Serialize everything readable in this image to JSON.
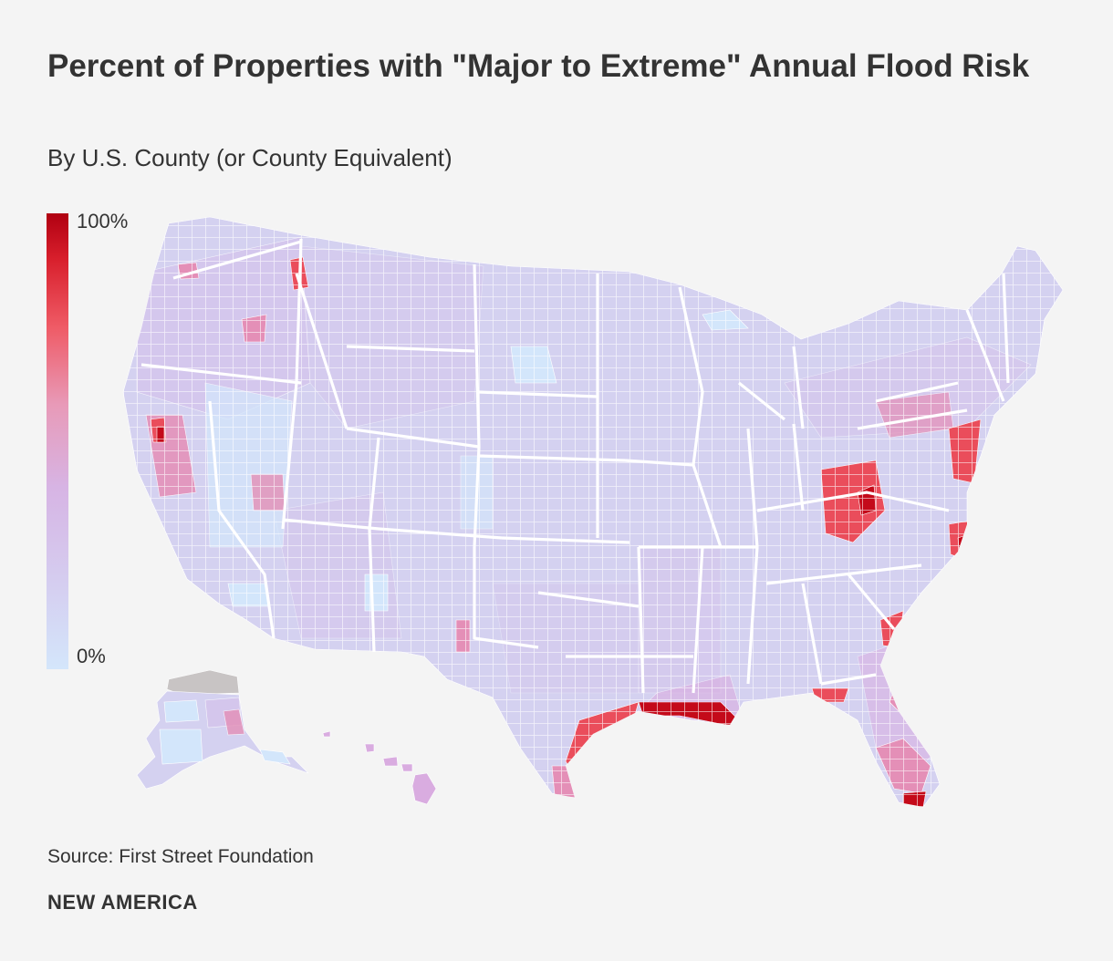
{
  "title": "Percent of Properties with \"Major to Extreme\" Annual Flood Risk",
  "subtitle": "By U.S. County (or County Equivalent)",
  "legend": {
    "max_label": "100%",
    "min_label": "0%",
    "colors": [
      "#d4e6fb",
      "#d5ccef",
      "#d7b4e4",
      "#e89ab8",
      "#ef5b66",
      "#d81f2c",
      "#b00011"
    ]
  },
  "map": {
    "colors": {
      "base": "#d4d1f0",
      "no_data": "#c8c4c4",
      "border": "#ffffff",
      "very_low": "#d3e6fb",
      "low": "#d5c4ec",
      "medium": "#d9ace0",
      "elevated": "#e48fb7",
      "high": "#ea4d5b",
      "very_high": "#c40a1a"
    }
  },
  "source": "Source: First Street Foundation",
  "brand": "NEW AMERICA"
}
